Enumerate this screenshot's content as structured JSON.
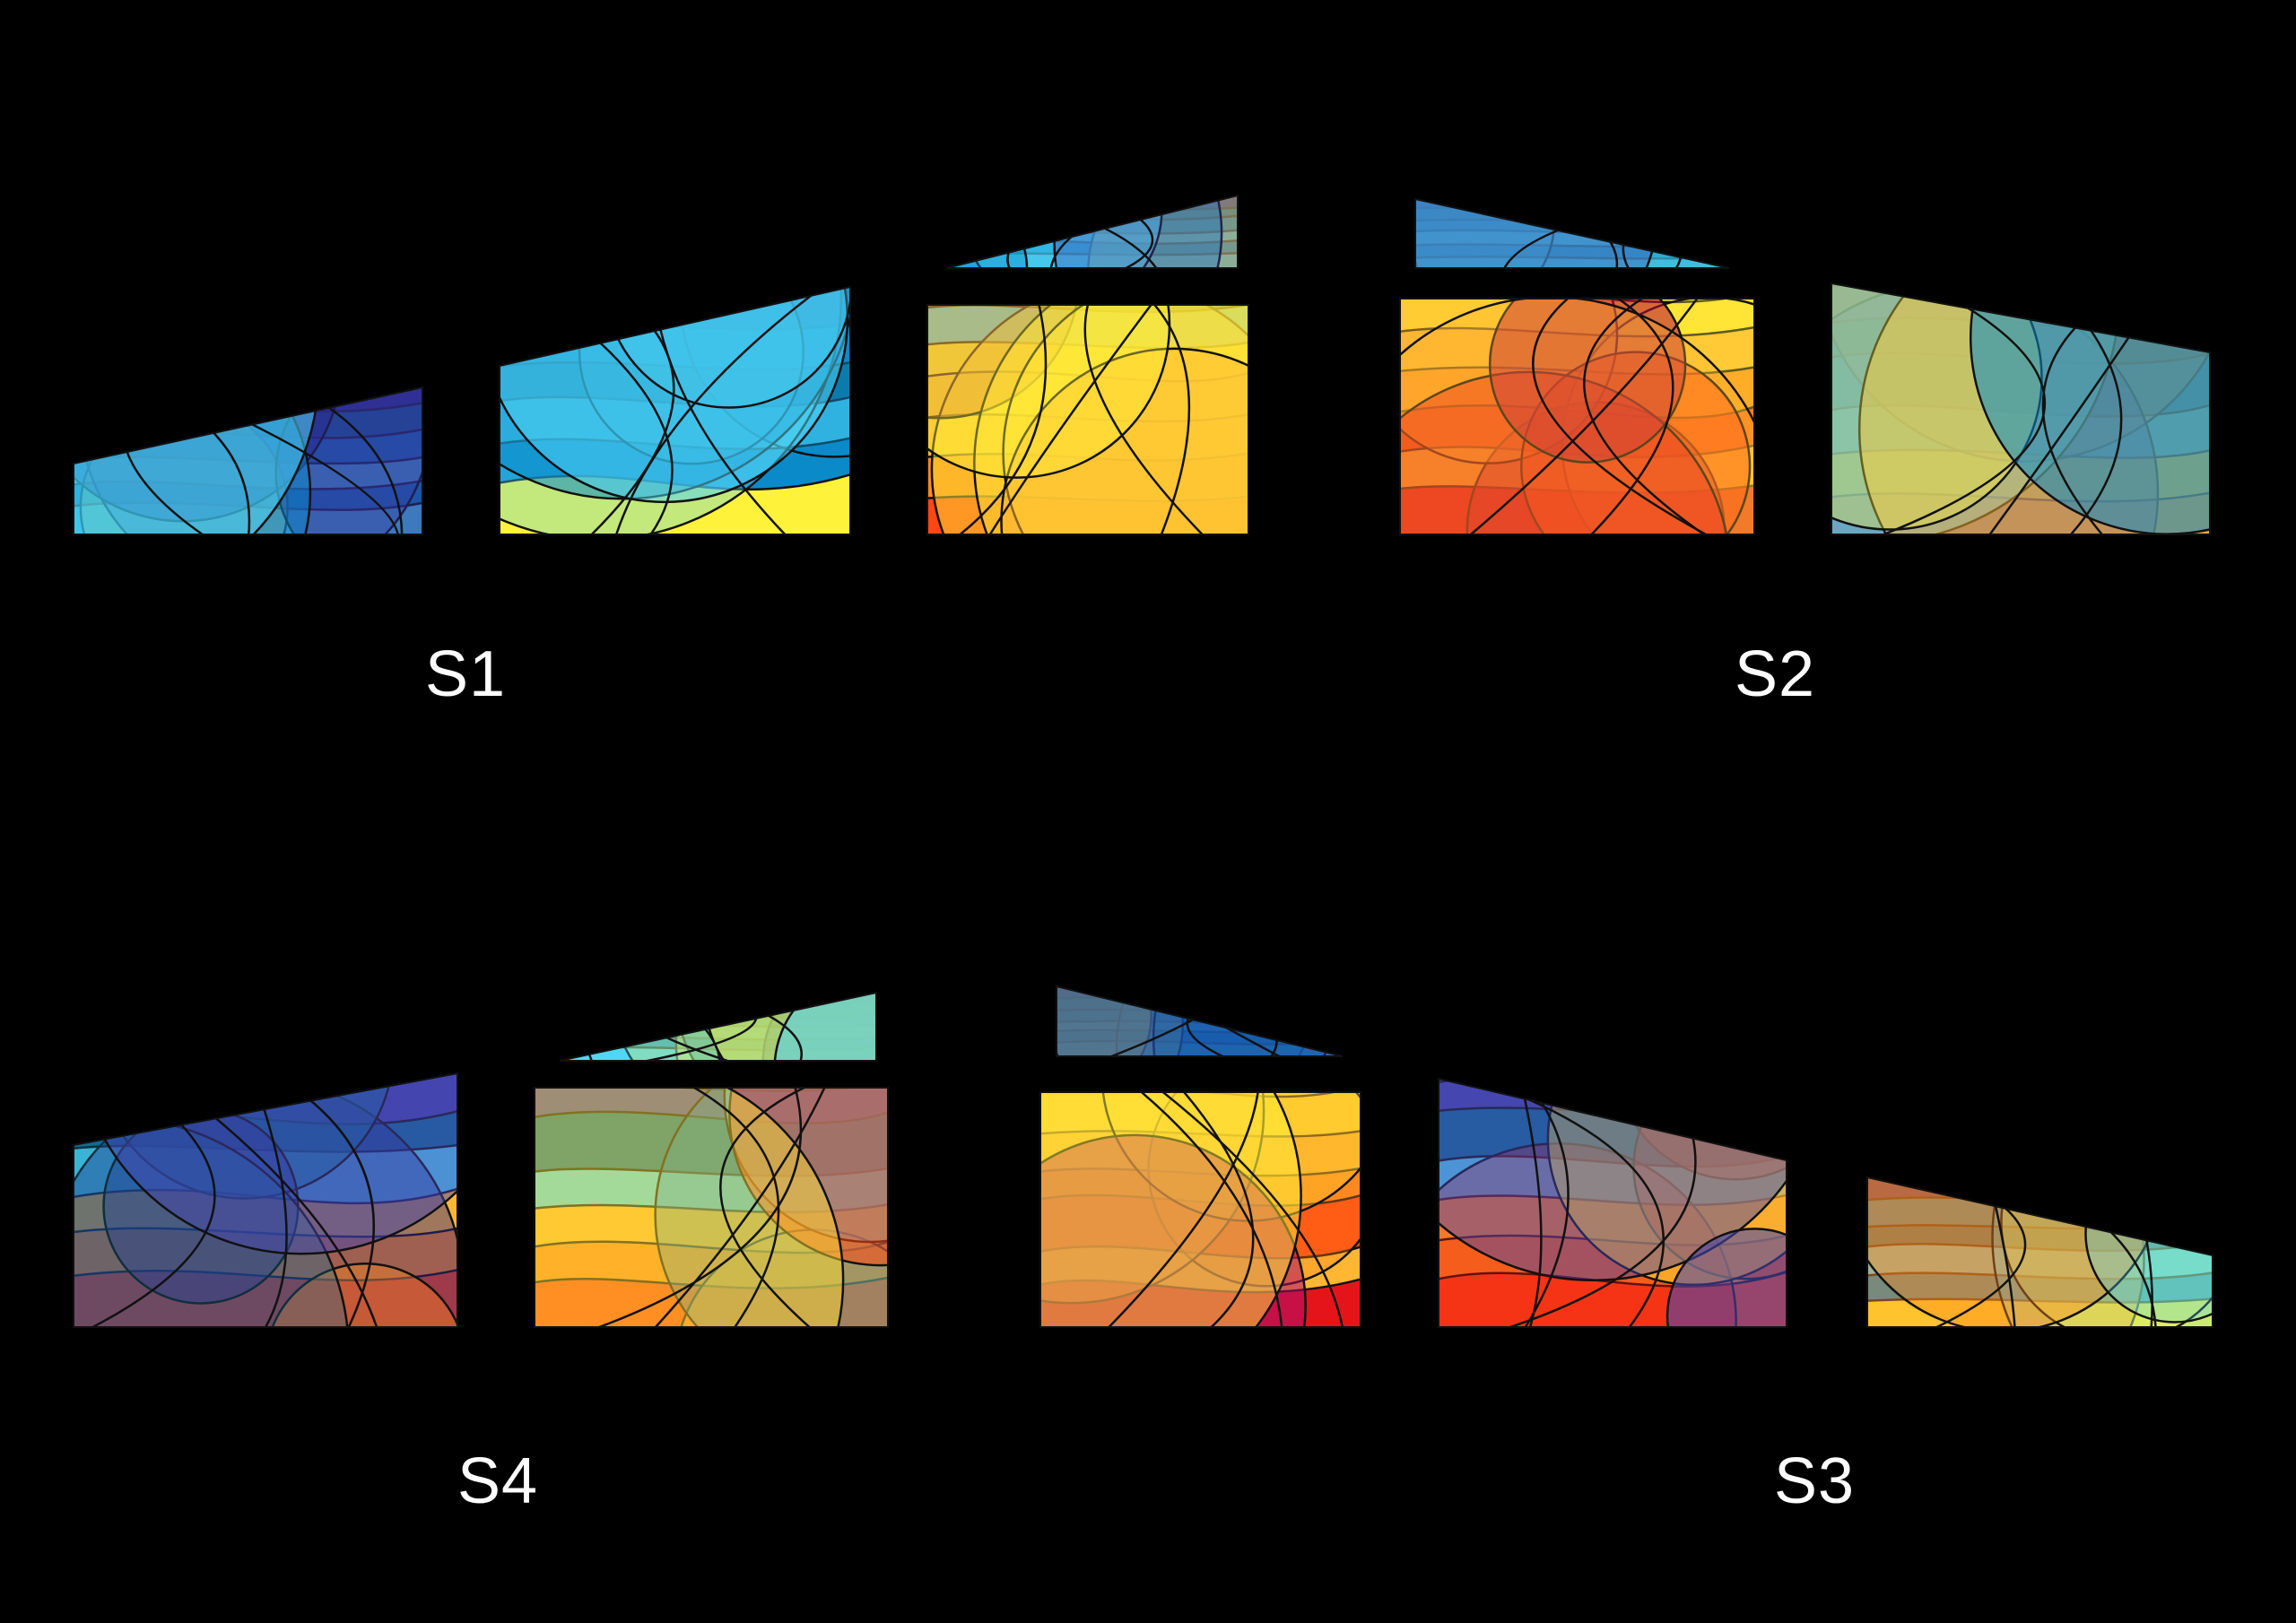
{
  "background": "#000000",
  "palette": {
    "navy": "#2b2b8f",
    "indigo": "#4646b0",
    "teal": "#0d6e96",
    "blue": "#0a8ac9",
    "cyan": "#52d6f5",
    "lemon": "#fff23a",
    "yellow": "#ffde35",
    "gold": "#ffb733",
    "orange": "#ff8a1f",
    "redorange": "#ff4713",
    "red": "#e5141b",
    "crimson": "#b90f3a",
    "magenta": "#ad0d6a",
    "leading": "#111111"
  },
  "sets": [
    {
      "id": "s1",
      "label": "S1",
      "tone": "cool",
      "panel_count": 4
    },
    {
      "id": "s2",
      "label": "S2",
      "tone": "warm",
      "panel_count": 3
    },
    {
      "id": "s4",
      "label": "S4",
      "tone": "mixed",
      "panel_count": 3
    },
    {
      "id": "s3",
      "label": "S3",
      "tone": "mixed",
      "panel_count": 4
    }
  ]
}
